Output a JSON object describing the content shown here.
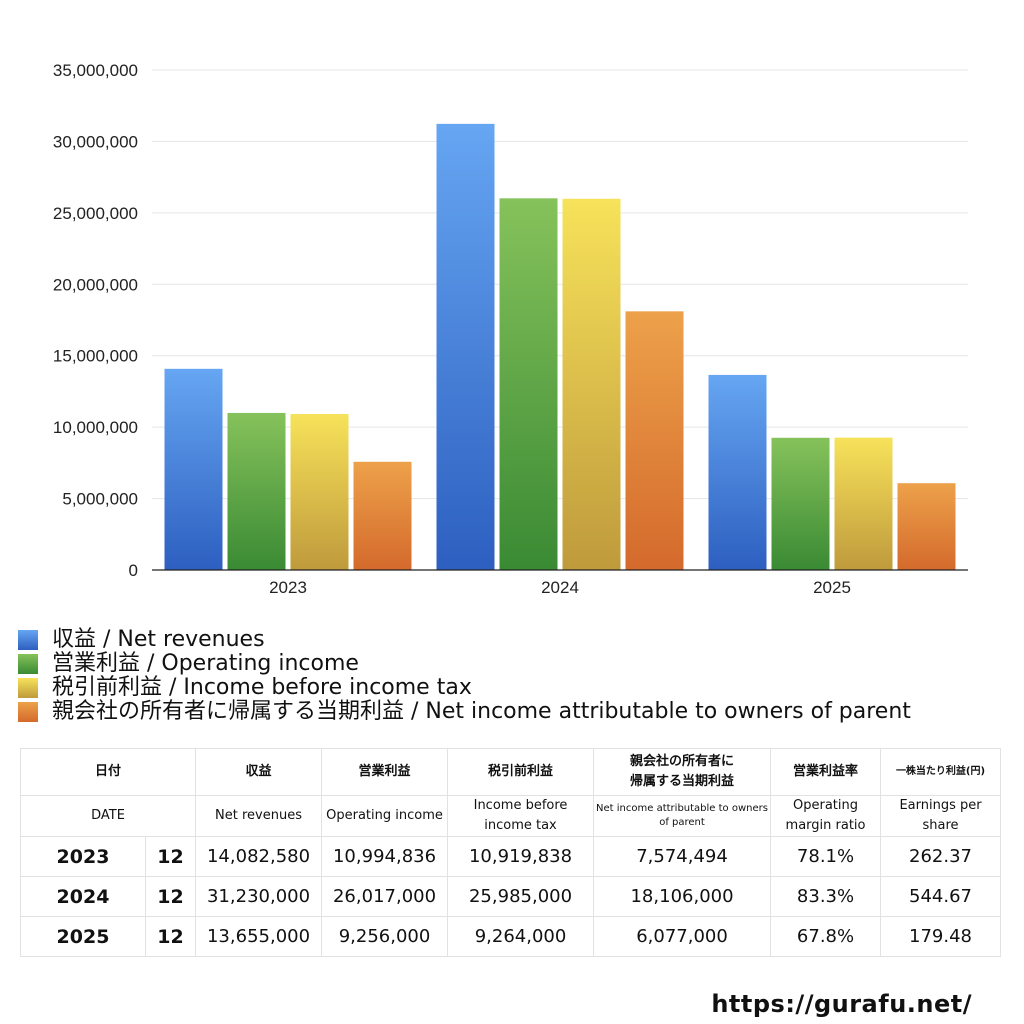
{
  "chart_data": {
    "type": "bar",
    "categories": [
      "2023",
      "2024",
      "2025"
    ],
    "series": [
      {
        "name": "収益 / Net revenues",
        "values": [
          14082580,
          31230000,
          13655000
        ],
        "color_top": "#66a6f2",
        "color_bottom": "#2d5fc0"
      },
      {
        "name": "営業利益 / Operating income",
        "values": [
          10994836,
          26017000,
          9256000
        ],
        "color_top": "#86c25b",
        "color_bottom": "#3a8a34"
      },
      {
        "name": "税引前利益 / Income before income tax",
        "values": [
          10919838,
          25985000,
          9264000
        ],
        "color_top": "#f7e25a",
        "color_bottom": "#bf9a3c"
      },
      {
        "name": "親会社の所有者に帰属する当期利益 / Net income attributable to owners of parent",
        "values": [
          7574494,
          18106000,
          6077000
        ],
        "color_top": "#eda14a",
        "color_bottom": "#d46a2c"
      }
    ],
    "ylim": [
      0,
      35000000
    ],
    "yticks": [
      "0",
      "5,000,000",
      "10,000,000",
      "15,000,000",
      "20,000,000",
      "25,000,000",
      "30,000,000",
      "35,000,000"
    ],
    "ytick_values": [
      0,
      5000000,
      10000000,
      15000000,
      20000000,
      25000000,
      30000000,
      35000000
    ],
    "grid": true,
    "legend": "bottom"
  },
  "table": {
    "header": [
      "日付",
      "",
      "収益",
      "営業利益",
      "税引前利益",
      "親会社の所有者に帰属する当期利益",
      "営業利益率",
      "一株当たり利益(円)"
    ],
    "header_line1": "親会社の所有者に",
    "header_line2": "帰属する当期利益",
    "subheader": [
      "DATE",
      "",
      "Net revenues",
      "Operating income",
      "Income before income tax",
      "Net income attributable to owners of parent",
      "Operating margin ratio",
      "Earnings per share"
    ],
    "rows": [
      {
        "year": "2023",
        "month": "12",
        "net_revenues": "14,082,580",
        "operating_income": "10,994,836",
        "income_before_tax": "10,919,838",
        "net_income": "7,574,494",
        "margin": "78.1%",
        "eps": "262.37"
      },
      {
        "year": "2024",
        "month": "12",
        "net_revenues": "31,230,000",
        "operating_income": "26,017,000",
        "income_before_tax": "25,985,000",
        "net_income": "18,106,000",
        "margin": "83.3%",
        "eps": "544.67"
      },
      {
        "year": "2025",
        "month": "12",
        "net_revenues": "13,655,000",
        "operating_income": "9,256,000",
        "income_before_tax": "9,264,000",
        "net_income": "6,077,000",
        "margin": "67.8%",
        "eps": "179.48"
      }
    ]
  },
  "footer": {
    "url": "https://gurafu.net/"
  }
}
